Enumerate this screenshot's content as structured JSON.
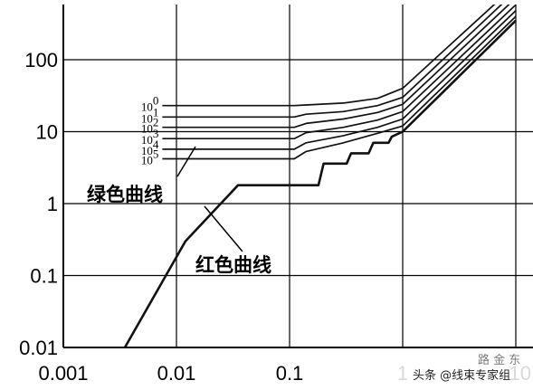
{
  "chart_data": {
    "type": "line",
    "title": "",
    "xlabel": "",
    "ylabel": "",
    "x_scale": "log",
    "y_scale": "log",
    "xlim": [
      0.001,
      10
    ],
    "ylim": [
      0.01,
      1000
    ],
    "x_ticks": [
      "0.001",
      "0.01",
      "0.1",
      "1",
      "10"
    ],
    "y_ticks": [
      "0.01",
      "0.1",
      "1",
      "10",
      "100"
    ],
    "grid": true,
    "series": [
      {
        "key": "red",
        "points": [
          [
            0.0035,
            0.01
          ],
          [
            0.012,
            0.3
          ],
          [
            0.035,
            1.8
          ],
          [
            0.18,
            1.8
          ],
          [
            0.2,
            3.6
          ],
          [
            0.32,
            3.6
          ],
          [
            0.35,
            5
          ],
          [
            0.5,
            5
          ],
          [
            0.55,
            7
          ],
          [
            0.75,
            7
          ],
          [
            0.8,
            8.5
          ],
          [
            1,
            10
          ],
          [
            10,
            350
          ]
        ]
      },
      {
        "key": "g5",
        "points": [
          [
            0.0075,
            4.2
          ],
          [
            0.11,
            4.2
          ],
          [
            0.14,
            5.3
          ],
          [
            0.3,
            7
          ],
          [
            0.6,
            9.5
          ],
          [
            1,
            12
          ],
          [
            10,
            400
          ]
        ]
      },
      {
        "key": "g4",
        "points": [
          [
            0.0075,
            5.7
          ],
          [
            0.11,
            5.7
          ],
          [
            0.14,
            7
          ],
          [
            0.3,
            8.8
          ],
          [
            0.6,
            11.5
          ],
          [
            1,
            15
          ],
          [
            10,
            480
          ]
        ]
      },
      {
        "key": "g3",
        "points": [
          [
            0.0075,
            8
          ],
          [
            0.11,
            8
          ],
          [
            0.14,
            9.7
          ],
          [
            0.3,
            11.5
          ],
          [
            0.6,
            14.5
          ],
          [
            1,
            19
          ],
          [
            10,
            580
          ]
        ]
      },
      {
        "key": "g2",
        "points": [
          [
            0.0075,
            11.5
          ],
          [
            0.11,
            11.5
          ],
          [
            0.14,
            13
          ],
          [
            0.3,
            15
          ],
          [
            0.6,
            18.5
          ],
          [
            1,
            24
          ],
          [
            10,
            720
          ]
        ]
      },
      {
        "key": "g1",
        "points": [
          [
            0.0075,
            16
          ],
          [
            0.11,
            16
          ],
          [
            0.14,
            17.5
          ],
          [
            0.3,
            19
          ],
          [
            0.6,
            23
          ],
          [
            1,
            30
          ],
          [
            10,
            900
          ]
        ]
      },
      {
        "key": "g0",
        "points": [
          [
            0.0075,
            23
          ],
          [
            0.11,
            23
          ],
          [
            0.14,
            23.5
          ],
          [
            0.3,
            25
          ],
          [
            0.6,
            29
          ],
          [
            1,
            40
          ],
          [
            10,
            1100
          ]
        ]
      }
    ],
    "curve_labels": [
      {
        "key": "g0",
        "base": "10",
        "exponent": "0"
      },
      {
        "key": "g1",
        "base": "10",
        "exponent": "1"
      },
      {
        "key": "g2",
        "base": "10",
        "exponent": "2"
      },
      {
        "key": "g3",
        "base": "10",
        "exponent": "3"
      },
      {
        "key": "g4",
        "base": "10",
        "exponent": "4"
      },
      {
        "key": "g5",
        "base": "10",
        "exponent": "5"
      }
    ],
    "annotations": {
      "green": "绿色曲线",
      "red": "红色曲线"
    }
  },
  "watermark": {
    "text": "头条 @线束专家组",
    "faded": "路 金 东"
  }
}
